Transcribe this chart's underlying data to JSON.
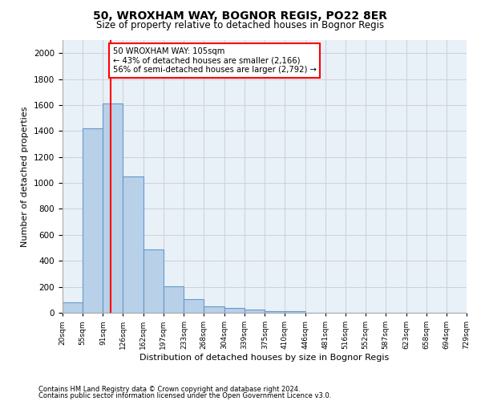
{
  "title": "50, WROXHAM WAY, BOGNOR REGIS, PO22 8ER",
  "subtitle": "Size of property relative to detached houses in Bognor Regis",
  "xlabel": "Distribution of detached houses by size in Bognor Regis",
  "ylabel": "Number of detached properties",
  "bin_edges": [
    20,
    55,
    91,
    126,
    162,
    197,
    233,
    268,
    304,
    339,
    375,
    410,
    446,
    481,
    516,
    552,
    587,
    623,
    658,
    694,
    729
  ],
  "bar_heights": [
    80,
    1420,
    1610,
    1050,
    490,
    205,
    105,
    50,
    35,
    25,
    15,
    10,
    0,
    0,
    0,
    0,
    0,
    0,
    0,
    0
  ],
  "bar_color": "#b8d0e8",
  "bar_edge_color": "#6699cc",
  "red_line_x": 105,
  "ylim": [
    0,
    2100
  ],
  "yticks": [
    0,
    200,
    400,
    600,
    800,
    1000,
    1200,
    1400,
    1600,
    1800,
    2000
  ],
  "annotation_title": "50 WROXHAM WAY: 105sqm",
  "annotation_line1": "← 43% of detached houses are smaller (2,166)",
  "annotation_line2": "56% of semi-detached houses are larger (2,792) →",
  "footer1": "Contains HM Land Registry data © Crown copyright and database right 2024.",
  "footer2": "Contains public sector information licensed under the Open Government Licence v3.0.",
  "background_color": "#ffffff",
  "axes_bg_color": "#e8f0f8",
  "grid_color": "#cccccc"
}
